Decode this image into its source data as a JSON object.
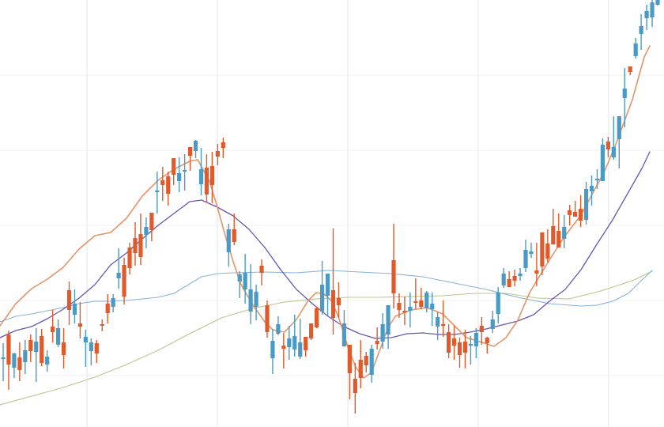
{
  "chart_data": {
    "type": "candlestick",
    "title": "",
    "xlabel": "",
    "ylabel": "",
    "ylim": [
      0,
      540
    ],
    "grid": true,
    "legend": "none",
    "colors": {
      "up": "#e05a2b",
      "down": "#4a9ac6",
      "ma_fast": "#e3956a",
      "ma_mid": "#6a54b0",
      "ma_slow": "#88b2d6",
      "ma_long": "#bcc48c",
      "grid": "#e6e6e6"
    },
    "candles": [
      [
        452,
        452,
        482,
        434
      ],
      [
        461,
        423,
        493,
        418
      ],
      [
        447,
        465,
        478,
        446
      ],
      [
        468,
        452,
        482,
        433
      ],
      [
        443,
        458,
        473,
        430
      ],
      [
        444,
        430,
        458,
        423
      ],
      [
        432,
        445,
        483,
        415
      ],
      [
        459,
        425,
        463,
        416
      ],
      [
        451,
        461,
        470,
        443
      ],
      [
        420,
        413,
        433,
        392
      ],
      [
        415,
        436,
        439,
        404
      ],
      [
        449,
        433,
        466,
        415
      ],
      [
        392,
        367,
        411,
        356
      ],
      [
        384,
        398,
        409,
        366
      ],
      [
        413,
        409,
        428,
        382
      ],
      [
        426,
        433,
        464,
        417
      ],
      [
        433,
        444,
        462,
        428
      ],
      [
        447,
        434,
        459,
        430
      ],
      [
        411,
        410,
        419,
        404
      ],
      [
        396,
        384,
        409,
        372
      ],
      [
        377,
        388,
        395,
        372
      ],
      [
        345,
        352,
        365,
        314
      ],
      [
        375,
        335,
        385,
        326
      ],
      [
        339,
        313,
        347,
        307
      ],
      [
        320,
        301,
        336,
        281
      ],
      [
        325,
        296,
        335,
        270
      ],
      [
        287,
        297,
        314,
        275
      ],
      [
        291,
        269,
        305,
        273
      ],
      [
        241,
        243,
        270,
        217
      ],
      [
        234,
        228,
        254,
        211
      ],
      [
        245,
        223,
        260,
        217
      ],
      [
        221,
        200,
        234,
        201
      ],
      [
        219,
        229,
        243,
        199
      ],
      [
        215,
        215,
        241,
        195
      ],
      [
        197,
        186,
        216,
        190
      ],
      [
        178,
        191,
        200,
        177
      ],
      [
        214,
        233,
        247,
        187
      ],
      [
        246,
        212,
        255,
        195
      ],
      [
        234,
        210,
        257,
        192
      ],
      [
        198,
        191,
        209,
        182
      ],
      [
        187,
        180,
        200,
        174
      ],
      [
        290,
        319,
        337,
        283
      ],
      [
        306,
        290,
        310,
        270
      ],
      [
        347,
        356,
        377,
        343
      ],
      [
        345,
        366,
        384,
        321
      ],
      [
        366,
        394,
        410,
        334
      ],
      [
        369,
        388,
        405,
        360
      ],
      [
        345,
        336,
        361,
        328
      ],
      [
        420,
        386,
        427,
        380
      ],
      [
        431,
        453,
        473,
        416
      ],
      [
        410,
        422,
        424,
        400
      ],
      [
        441,
        437,
        466,
        421
      ],
      [
        428,
        439,
        455,
        412
      ],
      [
        425,
        442,
        451,
        398
      ],
      [
        433,
        451,
        454,
        403
      ],
      [
        443,
        426,
        451,
        428
      ],
      [
        428,
        409,
        430,
        422
      ],
      [
        414,
        390,
        415,
        388
      ],
      [
        360,
        394,
        398,
        330
      ],
      [
        346,
        374,
        400,
        349
      ],
      [
        402,
        367,
        423,
        289
      ],
      [
        386,
        377,
        402,
        357
      ],
      [
        409,
        438,
        437,
        392
      ],
      [
        472,
        436,
        505,
        451
      ],
      [
        497,
        479,
        523,
        459
      ],
      [
        478,
        455,
        491,
        430
      ],
      [
        462,
        450,
        471,
        445
      ],
      [
        441,
        474,
        484,
        436
      ],
      [
        435,
        431,
        442,
        414
      ],
      [
        410,
        432,
        441,
        396
      ],
      [
        386,
        423,
        441,
        398
      ],
      [
        371,
        329,
        390,
        283
      ],
      [
        392,
        383,
        402,
        371
      ],
      [
        394,
        393,
        411,
        375
      ],
      [
        388,
        393,
        414,
        370
      ],
      [
        382,
        381,
        391,
        352
      ],
      [
        388,
        380,
        391,
        364
      ],
      [
        370,
        390,
        395,
        368
      ],
      [
        384,
        391,
        412,
        370
      ],
      [
        401,
        413,
        430,
        395
      ],
      [
        412,
        410,
        426,
        380
      ],
      [
        446,
        420,
        453,
        410
      ],
      [
        437,
        428,
        455,
        412
      ],
      [
        449,
        433,
        465,
        427
      ],
      [
        446,
        432,
        466,
        417
      ],
      [
        435,
        436,
        461,
        425
      ],
      [
        421,
        438,
        453,
        415
      ],
      [
        420,
        412,
        436,
        401
      ],
      [
        434,
        427,
        447,
        426
      ],
      [
        404,
        416,
        421,
        393
      ],
      [
        370,
        397,
        409,
        363
      ],
      [
        346,
        361,
        364,
        339
      ],
      [
        363,
        353,
        363,
        343
      ],
      [
        355,
        349,
        362,
        341
      ],
      [
        346,
        349,
        355,
        339
      ],
      [
        316,
        339,
        344,
        303
      ],
      [
        318,
        321,
        326,
        307
      ],
      [
        346,
        342,
        362,
        307
      ],
      [
        337,
        294,
        348,
        298
      ],
      [
        327,
        308,
        332,
        290
      ],
      [
        309,
        286,
        305,
        264
      ],
      [
        313,
        292,
        294,
        270
      ],
      [
        287,
        302,
        314,
        272
      ],
      [
        272,
        266,
        285,
        259
      ],
      [
        274,
        268,
        272,
        254
      ],
      [
        279,
        264,
        287,
        247
      ],
      [
        239,
        278,
        284,
        230
      ],
      [
        235,
        242,
        260,
        222
      ],
      [
        226,
        227,
        239,
        214
      ],
      [
        183,
        229,
        228,
        175
      ],
      [
        189,
        179,
        199,
        173
      ],
      [
        186,
        199,
        202,
        147
      ],
      [
        147,
        176,
        213,
        149
      ],
      [
        112,
        124,
        161,
        86
      ],
      [
        91,
        84,
        95,
        89
      ],
      [
        55,
        71,
        74,
        48
      ],
      [
        33,
        43,
        63,
        18
      ],
      [
        14,
        23,
        38,
        6
      ],
      [
        3,
        22,
        34,
        -7
      ],
      [
        -4,
        6,
        7,
        -4
      ]
    ],
    "ma_fast": [
      [
        0,
        412
      ],
      [
        20,
        384
      ],
      [
        40,
        365
      ],
      [
        60,
        353
      ],
      [
        80,
        338
      ],
      [
        100,
        315
      ],
      [
        120,
        298
      ],
      [
        140,
        294
      ],
      [
        160,
        276
      ],
      [
        180,
        248
      ],
      [
        200,
        228
      ],
      [
        220,
        214
      ],
      [
        240,
        204
      ],
      [
        250,
        202
      ],
      [
        265,
        229
      ],
      [
        275,
        262
      ],
      [
        285,
        298
      ],
      [
        295,
        331
      ],
      [
        305,
        360
      ],
      [
        320,
        386
      ],
      [
        335,
        407
      ],
      [
        345,
        417
      ],
      [
        360,
        420
      ],
      [
        375,
        404
      ],
      [
        390,
        380
      ],
      [
        400,
        370
      ],
      [
        410,
        372
      ],
      [
        420,
        381
      ],
      [
        430,
        406
      ],
      [
        440,
        439
      ],
      [
        450,
        464
      ],
      [
        460,
        478
      ],
      [
        470,
        471
      ],
      [
        480,
        444
      ],
      [
        490,
        416
      ],
      [
        500,
        400
      ],
      [
        520,
        392
      ],
      [
        540,
        389
      ],
      [
        560,
        397
      ],
      [
        575,
        412
      ],
      [
        590,
        427
      ],
      [
        610,
        433
      ],
      [
        625,
        438
      ],
      [
        640,
        427
      ],
      [
        655,
        405
      ],
      [
        670,
        370
      ],
      [
        685,
        345
      ],
      [
        700,
        321
      ],
      [
        715,
        298
      ],
      [
        735,
        272
      ],
      [
        750,
        244
      ],
      [
        765,
        216
      ],
      [
        780,
        180
      ],
      [
        800,
        126
      ],
      [
        815,
        72
      ],
      [
        822,
        58
      ]
    ],
    "ma_mid": [
      [
        0,
        427
      ],
      [
        20,
        418
      ],
      [
        40,
        413
      ],
      [
        60,
        403
      ],
      [
        80,
        391
      ],
      [
        100,
        377
      ],
      [
        120,
        360
      ],
      [
        140,
        335
      ],
      [
        160,
        320
      ],
      [
        180,
        302
      ],
      [
        200,
        285
      ],
      [
        220,
        270
      ],
      [
        240,
        255
      ],
      [
        255,
        253
      ],
      [
        275,
        262
      ],
      [
        295,
        273
      ],
      [
        315,
        290
      ],
      [
        335,
        313
      ],
      [
        355,
        341
      ],
      [
        375,
        366
      ],
      [
        395,
        384
      ],
      [
        415,
        400
      ],
      [
        435,
        413
      ],
      [
        455,
        422
      ],
      [
        475,
        428
      ],
      [
        495,
        427
      ],
      [
        515,
        422
      ],
      [
        535,
        421
      ],
      [
        555,
        423
      ],
      [
        575,
        423
      ],
      [
        595,
        420
      ],
      [
        615,
        416
      ],
      [
        635,
        411
      ],
      [
        655,
        406
      ],
      [
        675,
        398
      ],
      [
        695,
        381
      ],
      [
        715,
        366
      ],
      [
        735,
        341
      ],
      [
        755,
        309
      ],
      [
        775,
        278
      ],
      [
        795,
        243
      ],
      [
        812,
        213
      ],
      [
        822,
        192
      ]
    ],
    "ma_slow": [
      [
        0,
        407
      ],
      [
        20,
        400
      ],
      [
        40,
        397
      ],
      [
        60,
        393
      ],
      [
        80,
        389
      ],
      [
        100,
        384
      ],
      [
        120,
        381
      ],
      [
        140,
        381
      ],
      [
        160,
        380
      ],
      [
        180,
        378
      ],
      [
        200,
        376
      ],
      [
        220,
        371
      ],
      [
        240,
        359
      ],
      [
        255,
        350
      ],
      [
        275,
        346
      ],
      [
        295,
        345
      ],
      [
        335,
        344
      ],
      [
        375,
        345
      ],
      [
        415,
        342
      ],
      [
        455,
        344
      ],
      [
        495,
        346
      ],
      [
        535,
        350
      ],
      [
        575,
        358
      ],
      [
        615,
        366
      ],
      [
        655,
        376
      ],
      [
        695,
        384
      ],
      [
        735,
        387
      ],
      [
        755,
        386
      ],
      [
        775,
        381
      ],
      [
        795,
        371
      ],
      [
        812,
        354
      ],
      [
        825,
        342
      ]
    ],
    "ma_long": [
      [
        0,
        512
      ],
      [
        40,
        501
      ],
      [
        80,
        490
      ],
      [
        120,
        477
      ],
      [
        160,
        461
      ],
      [
        200,
        443
      ],
      [
        240,
        422
      ],
      [
        280,
        402
      ],
      [
        320,
        390
      ],
      [
        360,
        382
      ],
      [
        400,
        378
      ],
      [
        440,
        376
      ],
      [
        480,
        376
      ],
      [
        520,
        375
      ],
      [
        560,
        374
      ],
      [
        600,
        371
      ],
      [
        640,
        371
      ],
      [
        680,
        377
      ],
      [
        720,
        378
      ],
      [
        760,
        368
      ],
      [
        800,
        355
      ],
      [
        825,
        343
      ]
    ]
  }
}
